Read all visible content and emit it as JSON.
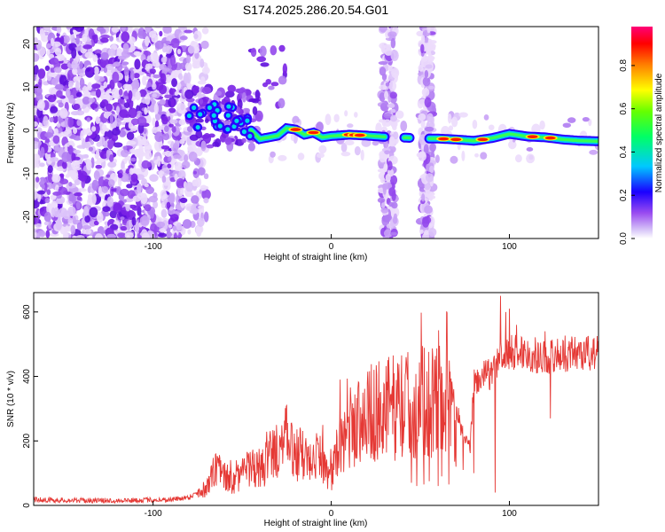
{
  "title": "S174.2025.286.20.54.G01",
  "chart_data": [
    {
      "type": "heatmap",
      "xlabel": "Height of straight line (km)",
      "ylabel": "Frequency (Hz)",
      "xlim": [
        -167,
        150
      ],
      "ylim": [
        -25,
        24
      ],
      "x_ticks": [
        -100,
        0,
        100
      ],
      "x_tick_labels": [
        "-100",
        "0",
        "100"
      ],
      "y_ticks": [
        20,
        10,
        0,
        -10,
        -20
      ],
      "y_tick_labels": [
        "20",
        "10",
        "0",
        "-10",
        "-20"
      ],
      "colorbar": {
        "label": "Normalized spectral amplitude",
        "range": [
          0,
          0.98
        ],
        "ticks": [
          0,
          0.2,
          0.4,
          0.6,
          0.8
        ],
        "tick_labels": [
          "0.0",
          "0.2",
          "0.4",
          "0.6",
          "0.8"
        ]
      },
      "ridge": {
        "description_note": "dominant frequency ridge (Hz) vs height (km)",
        "x": [
          -85,
          -75,
          -65,
          -55,
          -45,
          -40,
          -30,
          -25,
          -20,
          -15,
          -10,
          -5,
          0,
          10,
          20,
          30,
          55,
          60,
          70,
          80,
          90,
          100,
          110,
          120,
          130,
          140,
          150
        ],
        "y": [
          0.2,
          3.2,
          3.8,
          2.8,
          0.0,
          -2.0,
          -1.2,
          0.5,
          0.2,
          -1.0,
          -0.5,
          -1.6,
          -1.3,
          -1.0,
          -1.2,
          -1.5,
          -1.9,
          -1.9,
          -2.1,
          -2.4,
          -1.8,
          -0.8,
          -1.4,
          -1.6,
          -2.1,
          -2.4,
          -2.5
        ]
      }
    },
    {
      "type": "line",
      "xlabel": "Height of straight line (km)",
      "ylabel": "SNR (10 * v/v)",
      "xlim": [
        -167,
        150
      ],
      "ylim": [
        0,
        660
      ],
      "x_ticks": [
        -100,
        0,
        100
      ],
      "x_tick_labels": [
        "-100",
        "0",
        "100"
      ],
      "y_ticks": [
        0,
        200,
        400,
        600
      ],
      "y_tick_labels": [
        "0",
        "200",
        "400",
        "600"
      ],
      "color": "#e53935",
      "series": [
        {
          "name": "SNR",
          "x": [
            -167,
            -150,
            -130,
            -110,
            -90,
            -80,
            -70,
            -65,
            -60,
            -55,
            -50,
            -45,
            -40,
            -35,
            -30,
            -25,
            -20,
            -15,
            -10,
            -5,
            0,
            5,
            10,
            20,
            30,
            40,
            50,
            60,
            65,
            68,
            70,
            72,
            75,
            78,
            80,
            85,
            90,
            95,
            100,
            105,
            110,
            120,
            130,
            140,
            150
          ],
          "y": [
            18,
            16,
            15,
            16,
            18,
            25,
            55,
            110,
            90,
            70,
            95,
            120,
            100,
            150,
            180,
            200,
            160,
            150,
            170,
            140,
            90,
            180,
            240,
            280,
            300,
            310,
            320,
            330,
            320,
            270,
            300,
            260,
            200,
            180,
            380,
            400,
            410,
            460,
            470,
            480,
            470,
            460,
            470,
            475,
            470
          ]
        }
      ],
      "dips": {
        "x": [
          45,
          48,
          52,
          55,
          60,
          62,
          66,
          70,
          74,
          80,
          92,
          104,
          123
        ],
        "y": [
          70,
          60,
          65,
          75,
          60,
          90,
          65,
          120,
          110,
          100,
          40,
          150,
          270
        ]
      },
      "spikes": {
        "x": [
          -62,
          5,
          95,
          98,
          100,
          104,
          120
        ],
        "y": [
          140,
          390,
          650,
          600,
          610,
          560,
          540
        ]
      }
    }
  ]
}
